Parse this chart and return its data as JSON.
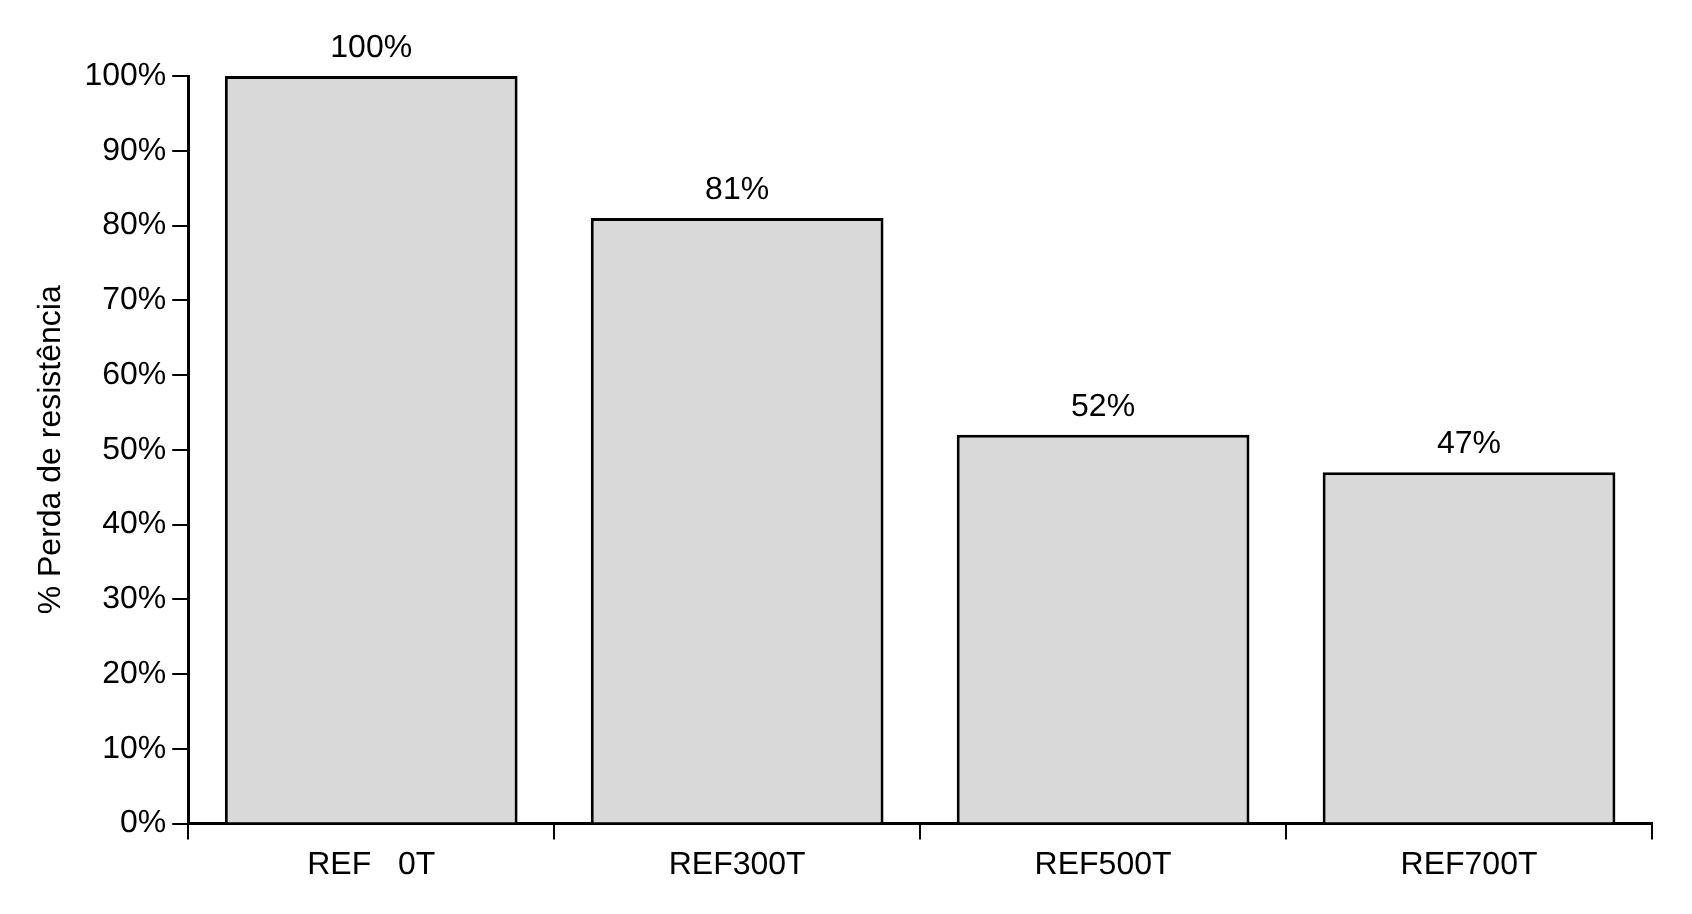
{
  "chart_data": {
    "type": "bar",
    "ylabel": "% Perda de resistência",
    "categories": [
      "REF   0T",
      "REF300T",
      "REF500T",
      "REF700T"
    ],
    "values": [
      100,
      81,
      52,
      47
    ],
    "value_labels": [
      "100%",
      "81%",
      "52%",
      "47%"
    ],
    "color": "#d9d9d9",
    "ylim": [
      0,
      100
    ],
    "yticks": [
      {
        "value": 0,
        "label": "0%"
      },
      {
        "value": 10,
        "label": "10%"
      },
      {
        "value": 20,
        "label": "20%"
      },
      {
        "value": 30,
        "label": "30%"
      },
      {
        "value": 40,
        "label": "40%"
      },
      {
        "value": 50,
        "label": "50%"
      },
      {
        "value": 60,
        "label": "60%"
      },
      {
        "value": 70,
        "label": "70%"
      },
      {
        "value": 80,
        "label": "80%"
      },
      {
        "value": 90,
        "label": "90%"
      },
      {
        "value": 100,
        "label": "100%"
      }
    ],
    "grid": false,
    "legend": false
  }
}
